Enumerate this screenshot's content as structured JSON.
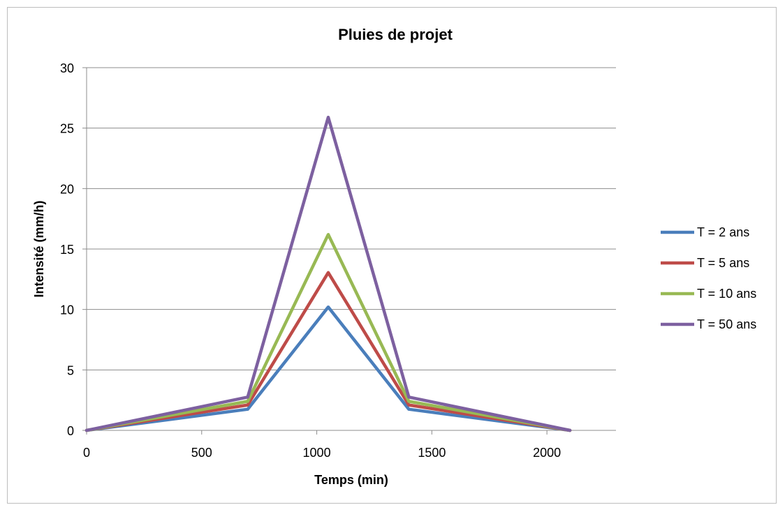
{
  "chart_data": {
    "type": "line",
    "title": "Pluies de projet",
    "xlabel": "Temps (min)",
    "ylabel": "Intensité (mm/h)",
    "xlim": [
      0,
      2300
    ],
    "ylim": [
      0,
      30
    ],
    "x_ticks": [
      0,
      500,
      1000,
      1500,
      2000
    ],
    "y_ticks": [
      0,
      5,
      10,
      15,
      20,
      25,
      30
    ],
    "grid": "horizontal",
    "legend_position": "right",
    "x": [
      0,
      700,
      1050,
      1400,
      2100
    ],
    "series": [
      {
        "name": "T = 2 ans",
        "color": "#4a7ebb",
        "values": [
          0,
          1.75,
          10.2,
          1.75,
          0
        ]
      },
      {
        "name": "T = 5 ans",
        "color": "#be4b48",
        "values": [
          0,
          2.1,
          13.05,
          2.1,
          0
        ]
      },
      {
        "name": "T = 10 ans",
        "color": "#98b954",
        "values": [
          0,
          2.4,
          16.2,
          2.4,
          0
        ]
      },
      {
        "name": "T = 50 ans",
        "color": "#7d60a0",
        "values": [
          0,
          2.75,
          25.9,
          2.75,
          0
        ]
      }
    ]
  }
}
